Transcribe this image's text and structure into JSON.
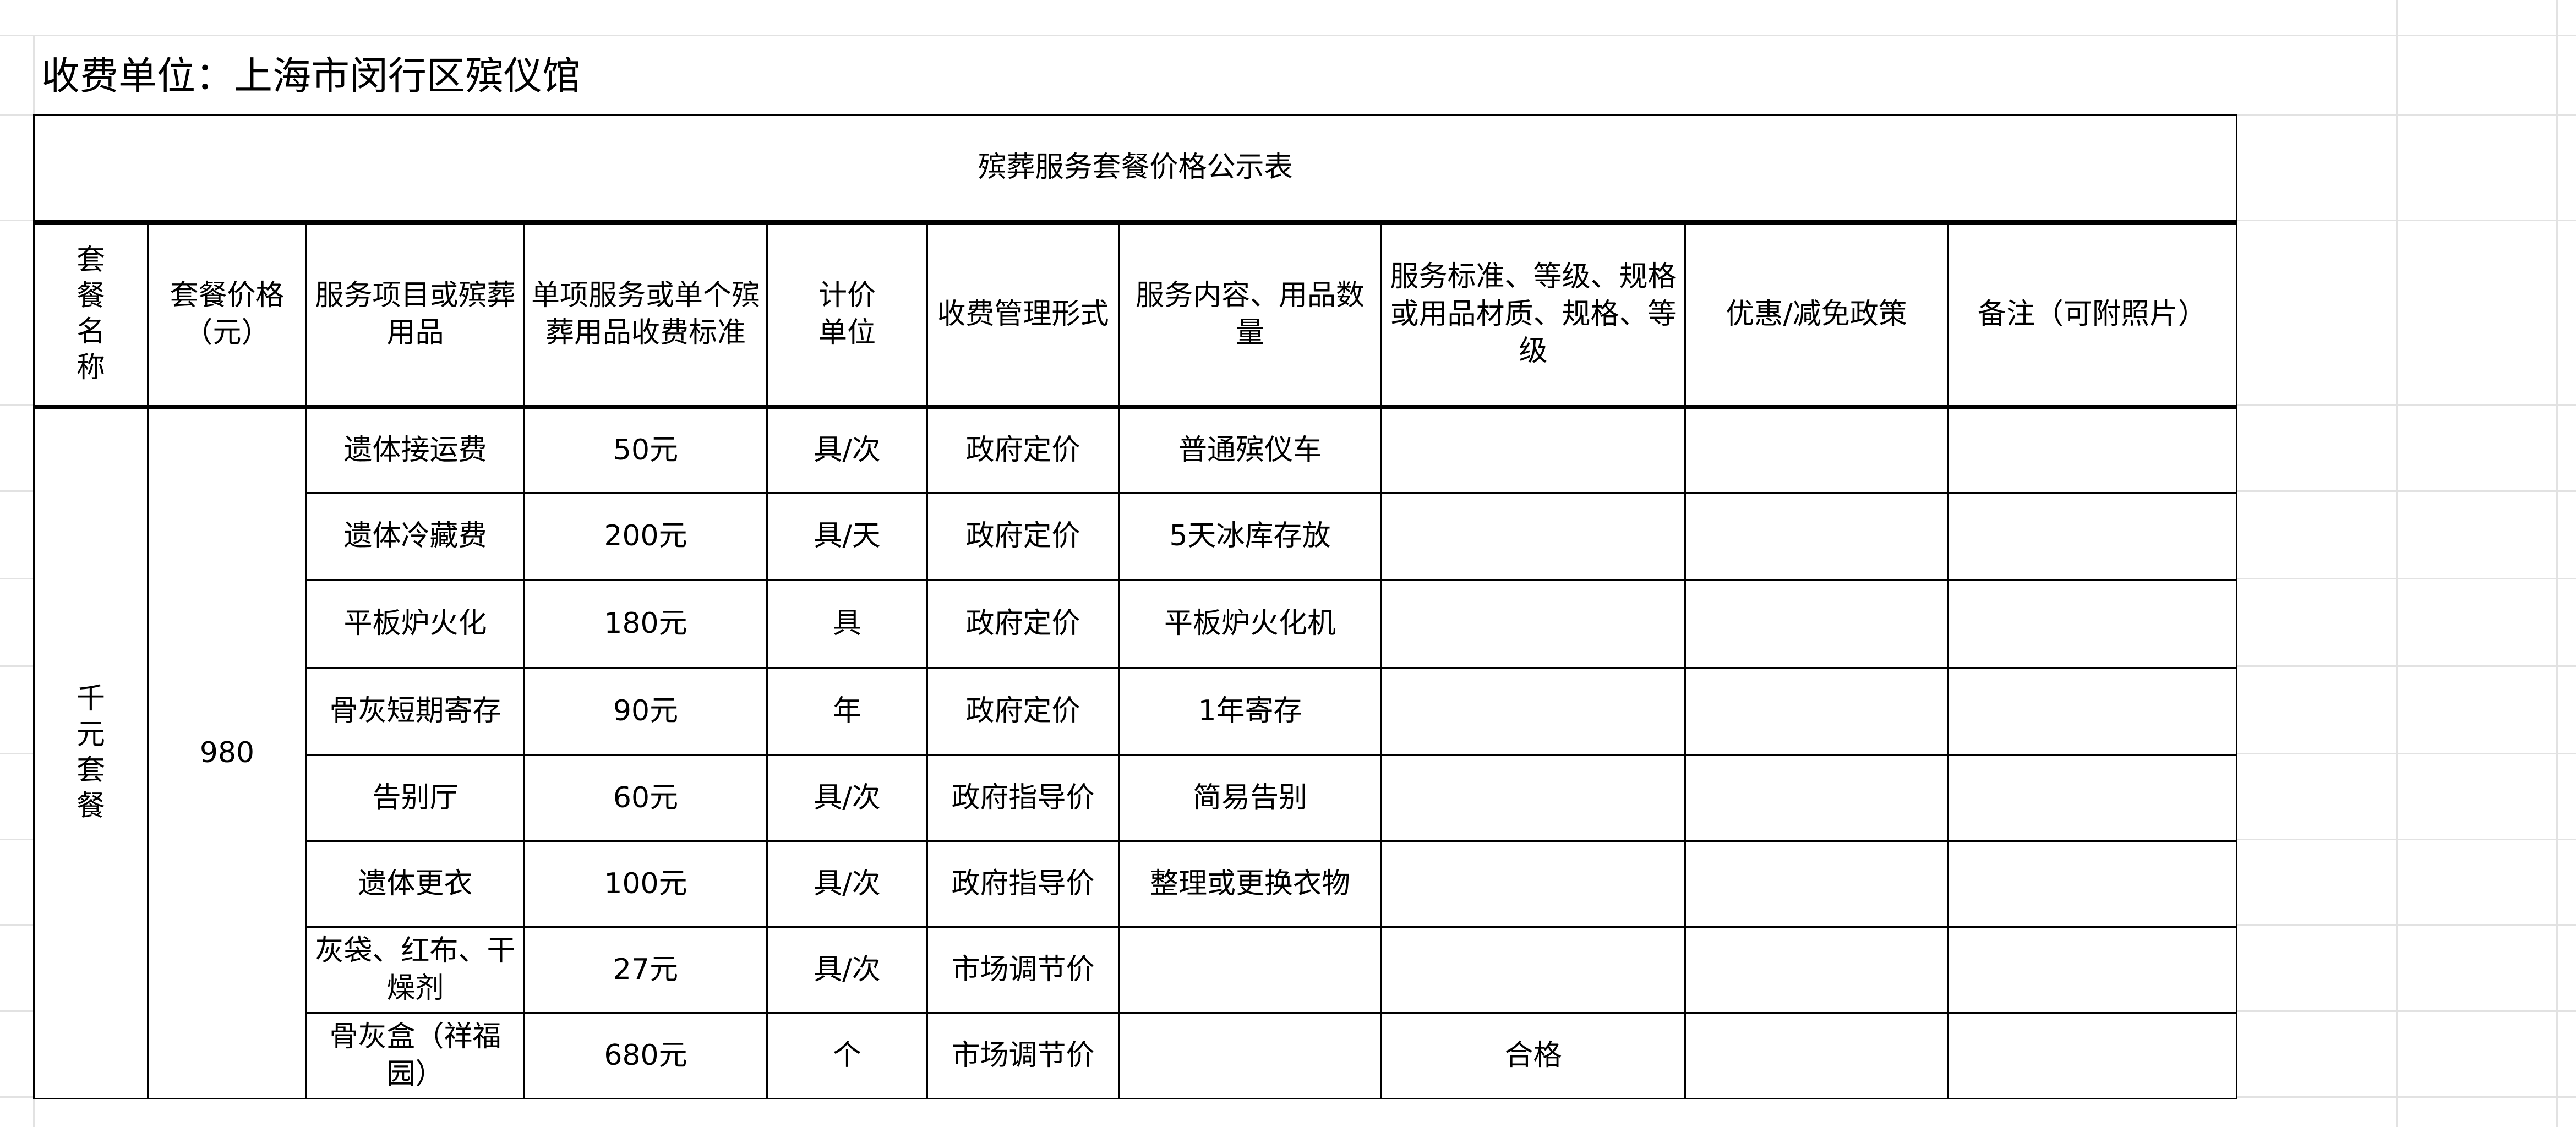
{
  "title": "收费单位：上海市闵行区殡仪馆",
  "table_title": "殡葬服务套餐价格公示表",
  "columns": [
    "套餐名称",
    "套餐价格（元）",
    "服务项目或殡葬用品",
    "单项服务或单个殡葬用品收费标准",
    "计价单位",
    "收费管理形式",
    "服务内容、用品数量",
    "服务标准、等级、规格或用品材质、规格、等级",
    "优惠/减免政策",
    "备注（可附照片）"
  ],
  "package": {
    "name": "千元套餐",
    "price": "980"
  },
  "rows": [
    {
      "item": "遗体接运费",
      "fee": "50元",
      "unit": "具/次",
      "mgmt": "政府定价",
      "content": "普通殡仪车",
      "standard": "",
      "discount": "",
      "remark": ""
    },
    {
      "item": "遗体冷藏费",
      "fee": "200元",
      "unit": "具/天",
      "mgmt": "政府定价",
      "content": "5天冰库存放",
      "standard": "",
      "discount": "",
      "remark": ""
    },
    {
      "item": "平板炉火化",
      "fee": "180元",
      "unit": "具",
      "mgmt": "政府定价",
      "content": "平板炉火化机",
      "standard": "",
      "discount": "",
      "remark": ""
    },
    {
      "item": "骨灰短期寄存",
      "fee": "90元",
      "unit": "年",
      "mgmt": "政府定价",
      "content": "1年寄存",
      "standard": "",
      "discount": "",
      "remark": ""
    },
    {
      "item": "告别厅",
      "fee": "60元",
      "unit": "具/次",
      "mgmt": "政府指导价",
      "content": "简易告别",
      "standard": "",
      "discount": "",
      "remark": ""
    },
    {
      "item": "遗体更衣",
      "fee": "100元",
      "unit": "具/次",
      "mgmt": "政府指导价",
      "content": "整理或更换衣物",
      "standard": "",
      "discount": "",
      "remark": ""
    },
    {
      "item": "灰袋、红布、干燥剂",
      "fee": "27元",
      "unit": "具/次",
      "mgmt": "市场调节价",
      "content": "",
      "standard": "",
      "discount": "",
      "remark": ""
    },
    {
      "item": "骨灰盒（祥福园）",
      "fee": "680元",
      "unit": "个",
      "mgmt": "市场调节价",
      "content": "",
      "standard": "合格",
      "discount": "",
      "remark": ""
    }
  ]
}
